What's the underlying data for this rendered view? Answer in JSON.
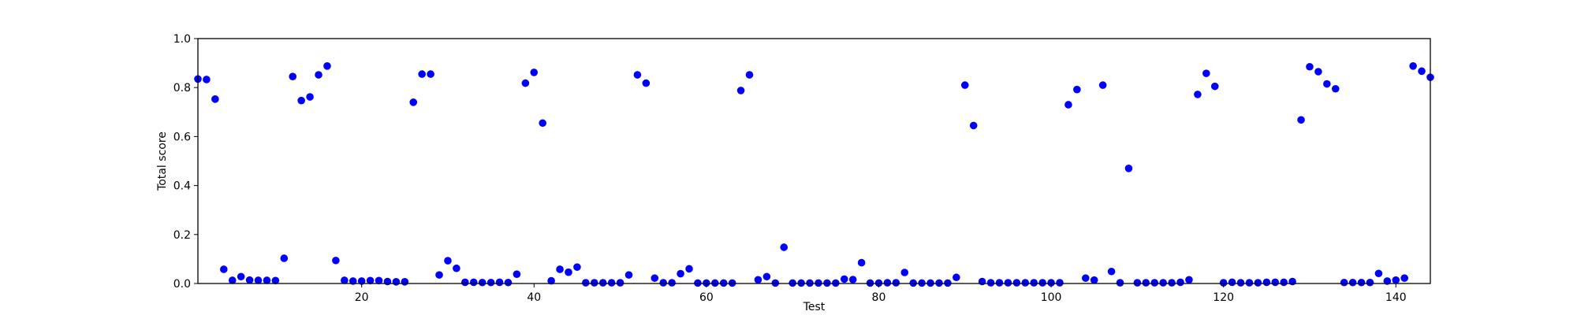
{
  "chart_data": {
    "type": "scatter",
    "title": "",
    "xlabel": "Test",
    "ylabel": "Total score",
    "xlim": [
      1,
      144
    ],
    "ylim": [
      0,
      1.0
    ],
    "xticks": [
      20,
      40,
      60,
      80,
      100,
      120,
      140
    ],
    "yticks": [
      "0.0",
      "0.2",
      "0.4",
      "0.6",
      "0.8",
      "1.0"
    ],
    "grid": false,
    "legend": "none",
    "marker_color": "#0000ff",
    "x": [
      1,
      2,
      3,
      4,
      5,
      6,
      7,
      8,
      9,
      10,
      11,
      12,
      13,
      14,
      15,
      16,
      17,
      18,
      19,
      20,
      21,
      22,
      23,
      24,
      25,
      26,
      27,
      28,
      29,
      30,
      31,
      32,
      33,
      34,
      35,
      36,
      37,
      38,
      39,
      40,
      41,
      42,
      43,
      44,
      45,
      46,
      47,
      48,
      49,
      50,
      51,
      52,
      53,
      54,
      55,
      56,
      57,
      58,
      59,
      60,
      61,
      62,
      63,
      64,
      65,
      66,
      67,
      68,
      69,
      70,
      71,
      72,
      73,
      74,
      75,
      76,
      77,
      78,
      79,
      80,
      81,
      82,
      83,
      84,
      85,
      86,
      87,
      88,
      89,
      90,
      91,
      92,
      93,
      94,
      95,
      96,
      97,
      98,
      99,
      100,
      101,
      102,
      103,
      104,
      105,
      106,
      107,
      108,
      109,
      110,
      111,
      112,
      113,
      114,
      115,
      116,
      117,
      118,
      119,
      120,
      121,
      122,
      123,
      124,
      125,
      126,
      127,
      128,
      129,
      130,
      131,
      132,
      133,
      134,
      135,
      136,
      137,
      138,
      139,
      140,
      141,
      142,
      143,
      144
    ],
    "y": [
      0.835,
      0.833,
      0.753,
      0.058,
      0.013,
      0.028,
      0.014,
      0.013,
      0.013,
      0.012,
      0.103,
      0.845,
      0.747,
      0.762,
      0.852,
      0.888,
      0.094,
      0.013,
      0.01,
      0.01,
      0.012,
      0.012,
      0.008,
      0.007,
      0.007,
      0.74,
      0.855,
      0.855,
      0.035,
      0.093,
      0.062,
      0.005,
      0.005,
      0.004,
      0.004,
      0.005,
      0.004,
      0.038,
      0.818,
      0.862,
      0.655,
      0.011,
      0.058,
      0.046,
      0.067,
      0.003,
      0.003,
      0.003,
      0.003,
      0.003,
      0.035,
      0.852,
      0.818,
      0.022,
      0.003,
      0.003,
      0.04,
      0.06,
      0.002,
      0.002,
      0.002,
      0.002,
      0.002,
      0.788,
      0.852,
      0.015,
      0.028,
      0.002,
      0.148,
      0.002,
      0.002,
      0.002,
      0.002,
      0.002,
      0.002,
      0.018,
      0.016,
      0.085,
      0.002,
      0.002,
      0.003,
      0.003,
      0.045,
      0.002,
      0.002,
      0.002,
      0.002,
      0.002,
      0.025,
      0.81,
      0.645,
      0.008,
      0.003,
      0.003,
      0.003,
      0.003,
      0.003,
      0.003,
      0.003,
      0.003,
      0.003,
      0.73,
      0.792,
      0.022,
      0.014,
      0.81,
      0.049,
      0.003,
      0.47,
      0.003,
      0.003,
      0.003,
      0.003,
      0.003,
      0.005,
      0.015,
      0.772,
      0.858,
      0.805,
      0.003,
      0.005,
      0.003,
      0.003,
      0.003,
      0.005,
      0.005,
      0.005,
      0.008,
      0.668,
      0.885,
      0.865,
      0.815,
      0.795,
      0.004,
      0.004,
      0.004,
      0.004,
      0.041,
      0.01,
      0.014,
      0.022,
      0.888,
      0.867,
      0.842
    ]
  }
}
